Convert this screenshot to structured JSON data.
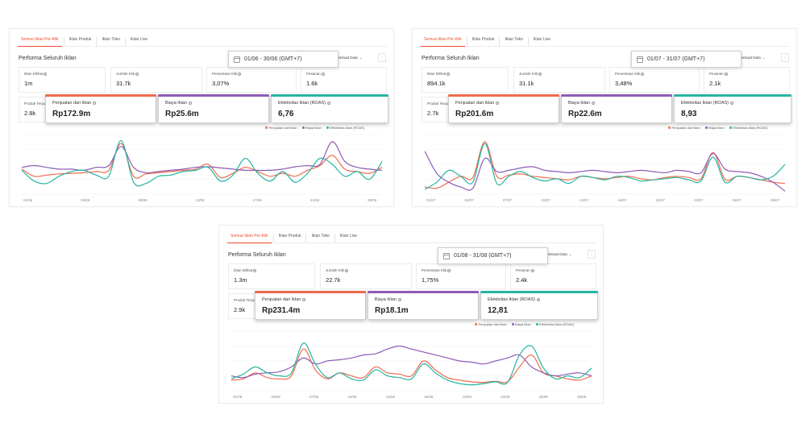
{
  "colors": {
    "accent": "#ee4d2d",
    "sales": "#ee6b4d",
    "cost": "#8e5bb5",
    "roas": "#26b5a1"
  },
  "panels": [
    {
      "tabs": [
        "Semua Iklan Per-Klik",
        "Iklan Produk",
        "Iklan Toko",
        "Iklan Live"
      ],
      "title": "Performa Seluruh Iklan",
      "date_range": "01/06 - 30/06 (GMT+7)",
      "download_label": "Download Data",
      "metrics": [
        {
          "label": "Iklan Dilihat",
          "value": "1m"
        },
        {
          "label": "Jumlah Klik",
          "value": "31.7k"
        },
        {
          "label": "Persentase Klik",
          "value": "3,07%"
        },
        {
          "label": "Pesanan",
          "value": "1.6k"
        },
        {
          "label": "Produk Terjual",
          "value": "2.8k"
        }
      ],
      "highlights": [
        {
          "label": "Penjualan dari Iklan",
          "value": "Rp172.9m"
        },
        {
          "label": "Biaya Iklan",
          "value": "Rp25.6m"
        },
        {
          "label": "Efektivitas Iklan (ROAS)",
          "value": "6,76"
        }
      ],
      "legend": [
        "Penjualan dari Iklan",
        "Biaya Iklan",
        "Efektivitas Iklan (ROAS)"
      ],
      "chart_data": {
        "type": "line",
        "x_ticks": [
          "01/06",
          "05/06",
          "09/06",
          "13/06",
          "17/06",
          "21/06",
          "25/06"
        ],
        "grid": true,
        "series": [
          {
            "name": "Penjualan dari Iklan",
            "values": [
              42,
              30,
              32,
              34,
              35,
              36,
              38,
              40,
              85,
              30,
              34,
              36,
              38,
              40,
              42,
              50,
              28,
              35,
              45,
              38,
              30,
              35,
              30,
              40,
              48,
              65,
              42,
              38,
              35,
              45
            ]
          },
          {
            "name": "Biaya Iklan",
            "values": [
              45,
              48,
              45,
              42,
              42,
              40,
              45,
              48,
              80,
              45,
              36,
              38,
              40,
              42,
              45,
              46,
              44,
              42,
              40,
              40,
              40,
              42,
              46,
              48,
              50,
              88,
              55,
              45,
              42,
              40
            ]
          },
          {
            "name": "Efektivitas Iklan (ROAS)",
            "values": [
              40,
              22,
              18,
              30,
              38,
              40,
              32,
              30,
              90,
              20,
              18,
              30,
              32,
              38,
              40,
              45,
              22,
              32,
              60,
              35,
              22,
              38,
              20,
              35,
              60,
              50,
              30,
              38,
              25,
              55
            ]
          }
        ]
      }
    },
    {
      "tabs": [
        "Semua Iklan Per-Klik",
        "Iklan Produk",
        "Iklan Toko",
        "Iklan Live"
      ],
      "title": "Performa Seluruh Iklan",
      "date_range": "01/07 - 31/07 (GMT+7)",
      "download_label": "Download Data",
      "metrics": [
        {
          "label": "Iklan Dilihat",
          "value": "894.1k"
        },
        {
          "label": "Jumlah Klik",
          "value": "31.1k"
        },
        {
          "label": "Persentase Klik",
          "value": "3,48%"
        },
        {
          "label": "Pesanan",
          "value": "2.1k"
        },
        {
          "label": "Produk Terjual",
          "value": "2.7k"
        }
      ],
      "highlights": [
        {
          "label": "Penjualan dari Iklan",
          "value": "Rp201.6m"
        },
        {
          "label": "Biaya Iklan",
          "value": "Rp22.6m"
        },
        {
          "label": "Efektivitas Iklan (ROAS)",
          "value": "8,93"
        }
      ],
      "legend": [
        "Penjualan dari Iklan",
        "Biaya Iklan",
        "Efektivitas Iklan (ROAS)"
      ],
      "chart_data": {
        "type": "line",
        "x_ticks": [
          "01/07",
          "04/07",
          "07/07",
          "10/07",
          "13/07",
          "16/07",
          "19/07",
          "22/07",
          "25/07",
          "28/07"
        ],
        "grid": true,
        "series": [
          {
            "name": "Penjualan dari Iklan",
            "values": [
              12,
              10,
              20,
              30,
              28,
              88,
              30,
              32,
              34,
              30,
              28,
              26,
              24,
              30,
              28,
              26,
              28,
              30,
              26,
              24,
              28,
              30,
              28,
              26,
              70,
              25,
              30,
              28,
              24,
              20,
              18
            ]
          },
          {
            "name": "Biaya Iklan",
            "values": [
              72,
              35,
              20,
              12,
              10,
              60,
              38,
              40,
              44,
              46,
              40,
              38,
              36,
              38,
              40,
              38,
              36,
              38,
              40,
              38,
              36,
              40,
              38,
              36,
              68,
              42,
              38,
              36,
              30,
              20,
              5
            ]
          },
          {
            "name": "Efektivitas Iklan (ROAS)",
            "values": [
              8,
              20,
              40,
              30,
              20,
              85,
              18,
              30,
              38,
              28,
              22,
              26,
              18,
              30,
              28,
              24,
              30,
              28,
              22,
              24,
              26,
              28,
              24,
              22,
              62,
              20,
              30,
              28,
              24,
              30,
              50
            ]
          }
        ]
      }
    },
    {
      "tabs": [
        "Semua Iklan Per-Klik",
        "Iklan Produk",
        "Iklan Toko",
        "Iklan Live"
      ],
      "title": "Performa Seluruh Iklan",
      "date_range": "01/08 - 31/08 (GMT+7)",
      "download_label": "Download Data",
      "metrics": [
        {
          "label": "Iklan Dilihat",
          "value": "1.3m"
        },
        {
          "label": "Jumlah Klik",
          "value": "22.7k"
        },
        {
          "label": "Persentase Klik",
          "value": "1,75%"
        },
        {
          "label": "Pesanan",
          "value": "2.4k"
        },
        {
          "label": "Produk Terjual",
          "value": "2.9k"
        }
      ],
      "highlights": [
        {
          "label": "Penjualan dari Iklan",
          "value": "Rp231.4m"
        },
        {
          "label": "Biaya Iklan",
          "value": "Rp18.1m"
        },
        {
          "label": "Efektivitas Iklan (ROAS)",
          "value": "12,81"
        }
      ],
      "legend": [
        "Penjualan dari Iklan",
        "Biaya Iklan",
        "Efektivitas Iklan (ROAS)"
      ],
      "chart_data": {
        "type": "line",
        "x_ticks": [
          "01/08",
          "04/08",
          "07/08",
          "10/08",
          "13/08",
          "16/08",
          "19/08",
          "22/08",
          "25/08",
          "28/08"
        ],
        "grid": true,
        "series": [
          {
            "name": "Penjualan dari Iklan",
            "values": [
              18,
              20,
              30,
              22,
              20,
              25,
              70,
              35,
              20,
              30,
              25,
              22,
              40,
              30,
              28,
              25,
              50,
              35,
              22,
              18,
              15,
              14,
              16,
              15,
              40,
              60,
              30,
              25,
              20,
              18,
              25
            ]
          },
          {
            "name": "Biaya Iklan",
            "values": [
              25,
              22,
              28,
              30,
              32,
              40,
              55,
              45,
              50,
              52,
              55,
              60,
              62,
              70,
              75,
              70,
              65,
              60,
              55,
              50,
              48,
              45,
              50,
              55,
              60,
              40,
              30,
              25,
              28,
              30,
              25
            ]
          },
          {
            "name": "Efektivitas Iklan (ROAS)",
            "values": [
              20,
              28,
              40,
              30,
              25,
              30,
              80,
              45,
              22,
              30,
              20,
              18,
              35,
              25,
              22,
              20,
              45,
              30,
              18,
              12,
              10,
              12,
              15,
              14,
              60,
              75,
              38,
              20,
              25,
              22,
              38
            ]
          }
        ]
      }
    }
  ]
}
